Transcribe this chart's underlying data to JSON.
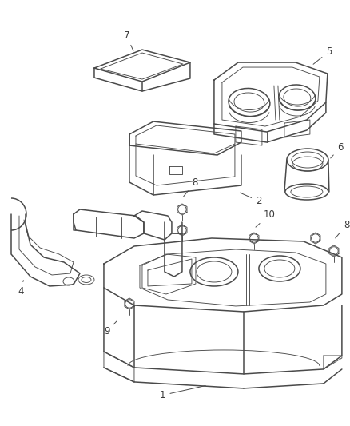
{
  "background_color": "#ffffff",
  "line_color": "#4a4a4a",
  "label_color": "#3a3a3a",
  "fig_width": 4.38,
  "fig_height": 5.33,
  "dpi": 100,
  "lw_main": 1.1,
  "lw_thin": 0.65,
  "lw_thick": 1.4,
  "font_size": 8.5
}
